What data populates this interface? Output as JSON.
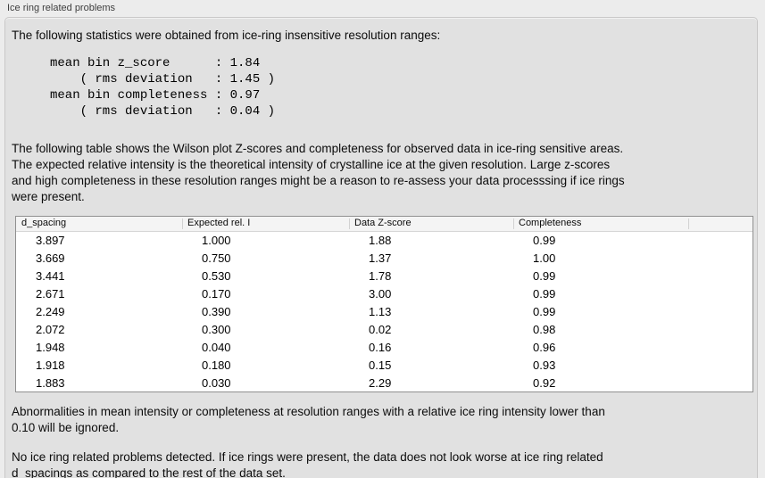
{
  "window": {
    "title": "Ice ring related problems"
  },
  "panel": {
    "intro": "The following statistics were obtained from ice-ring insensitive resolution ranges:",
    "stats": {
      "mean_bin_z_score": "1.84",
      "z_score_rms_deviation": "1.45",
      "mean_bin_completeness": "0.97",
      "completeness_rms_deviation": "0.04"
    },
    "stats_lines": [
      "mean bin z_score      : 1.84",
      "    ( rms deviation   : 1.45 )",
      "mean bin completeness : 0.97",
      "    ( rms deviation   : 0.04 )"
    ],
    "table_description": "The following table shows the Wilson plot Z-scores and completeness for observed data in ice-ring sensitive areas.\nThe expected relative intensity is the theoretical intensity of crystalline ice at the given resolution. Large z-scores\nand high completeness in these resolution ranges might be a reason to re-assess your data processsing if ice rings\nwere present.",
    "table": {
      "headers": [
        "d_spacing",
        "Expected rel. I",
        "Data Z-score",
        "Completeness"
      ],
      "rows": [
        [
          "3.897",
          "1.000",
          "1.88",
          "0.99"
        ],
        [
          "3.669",
          "0.750",
          "1.37",
          "1.00"
        ],
        [
          "3.441",
          "0.530",
          "1.78",
          "0.99"
        ],
        [
          "2.671",
          "0.170",
          "3.00",
          "0.99"
        ],
        [
          "2.249",
          "0.390",
          "1.13",
          "0.99"
        ],
        [
          "2.072",
          "0.300",
          "0.02",
          "0.98"
        ],
        [
          "1.948",
          "0.040",
          "0.16",
          "0.96"
        ],
        [
          "1.918",
          "0.180",
          "0.15",
          "0.93"
        ],
        [
          "1.883",
          "0.030",
          "2.29",
          "0.92"
        ]
      ]
    },
    "note_ignore": "Abnormalities in mean intensity or completeness at resolution ranges with a relative ice ring intensity lower than\n0.10 will be ignored.",
    "conclusion": "No ice ring related problems detected. If ice rings were present, the data does not look worse at ice ring related\nd_spacings as compared to the rest of the data set."
  }
}
